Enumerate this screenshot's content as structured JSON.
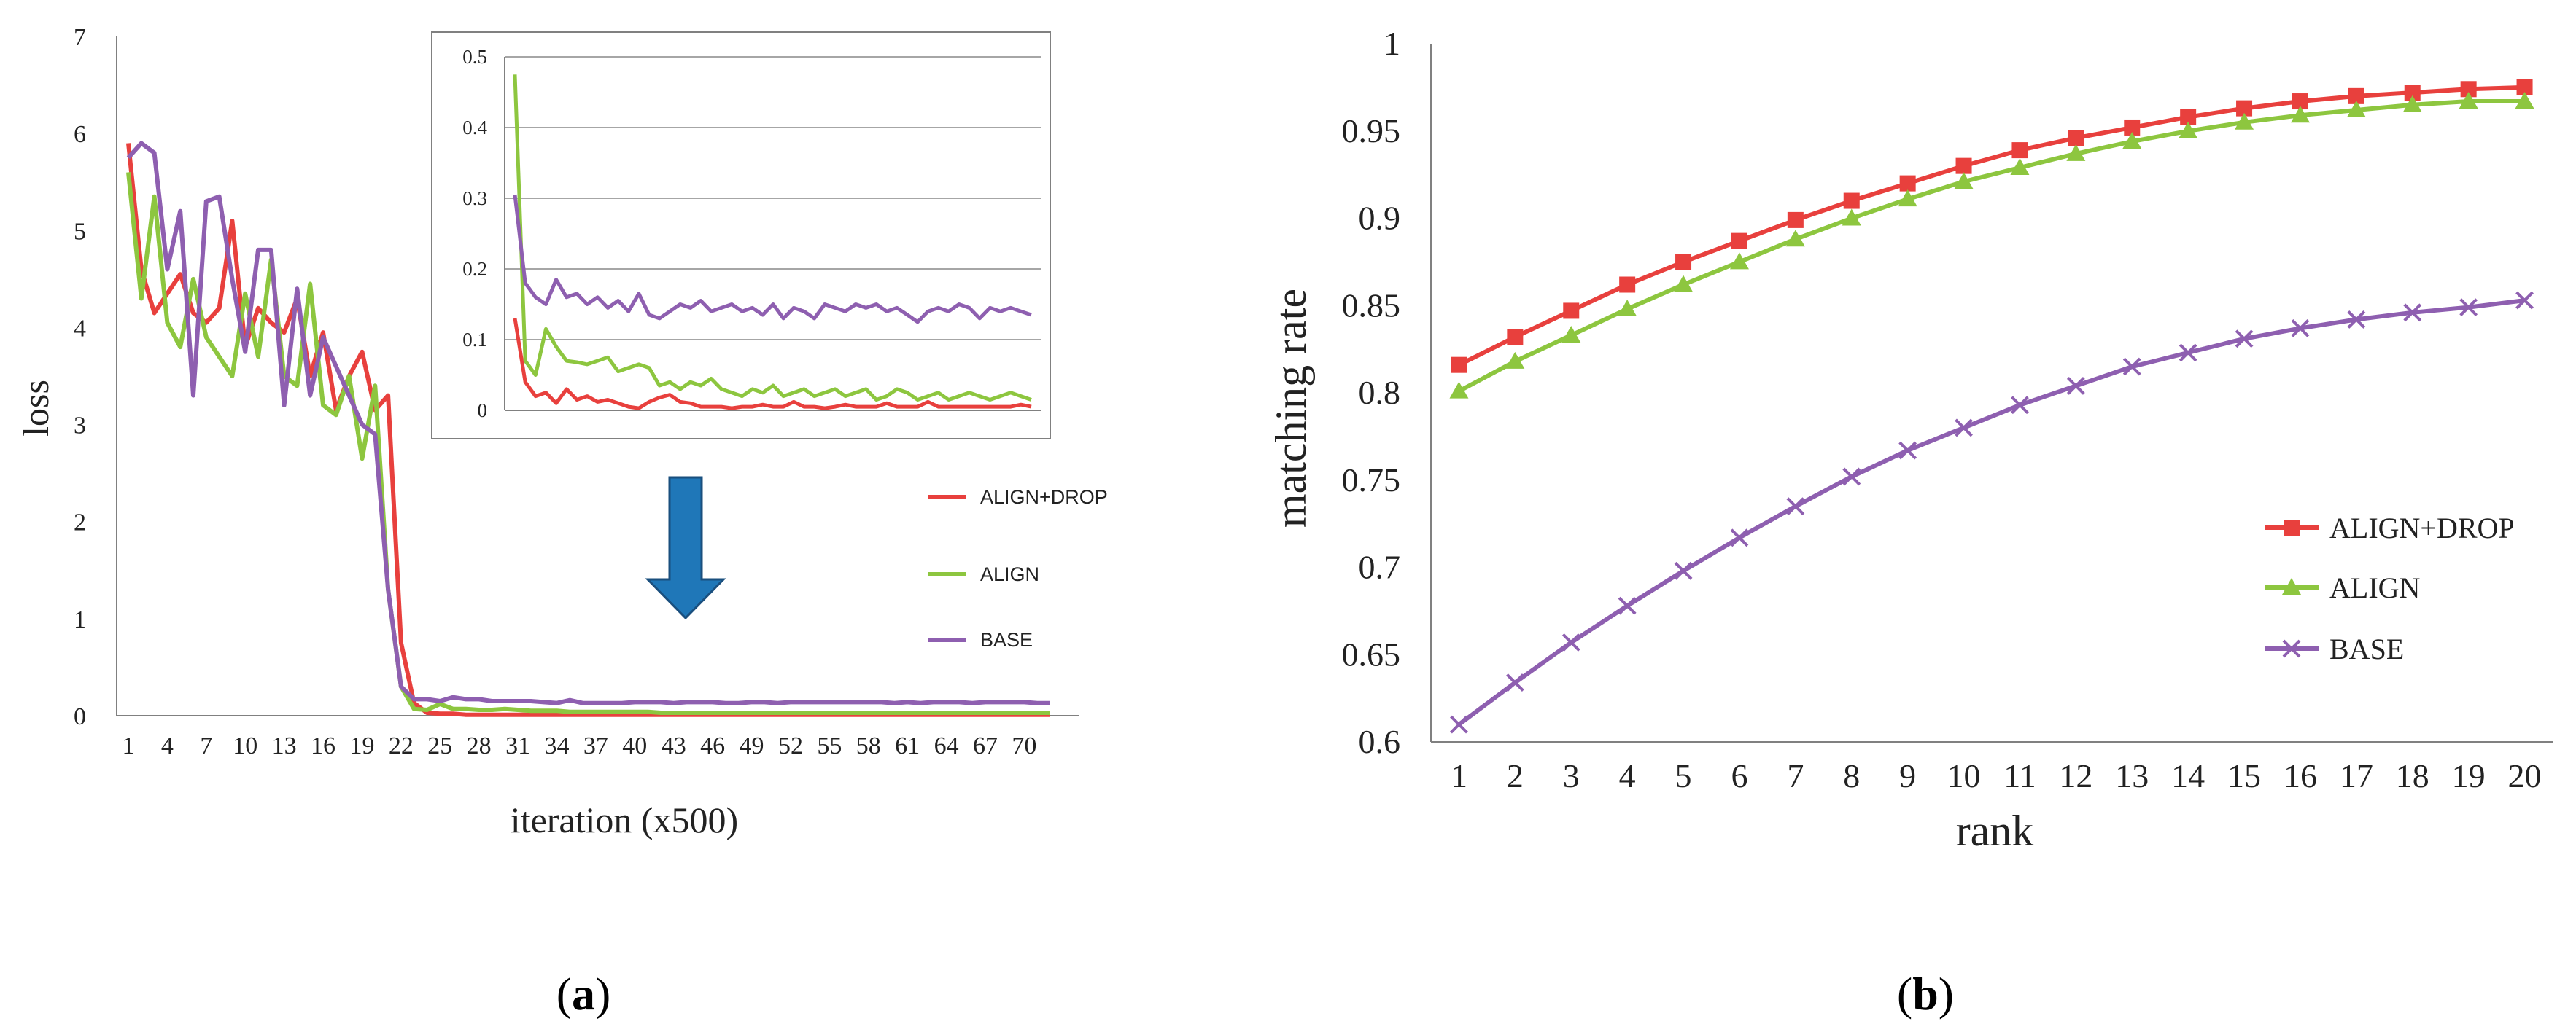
{
  "colors": {
    "align_drop": "#e8403d",
    "align": "#8dc63f",
    "base": "#8e5fb0",
    "arrow_fill": "#1f77b8",
    "arrow_stroke": "#1a4f7e",
    "axis": "#808080",
    "grid": "#a6a6a6"
  },
  "panels": {
    "a_label": "a",
    "b_label": "b"
  },
  "chart_data": [
    {
      "id": "a-main",
      "type": "line",
      "xlabel": "iteration (x500)",
      "ylabel": "loss",
      "ylim": [
        0,
        7
      ],
      "yticks": [
        "0",
        "1",
        "2",
        "3",
        "4",
        "5",
        "6",
        "7"
      ],
      "x_count": 72,
      "xticks": [
        "1",
        "4",
        "7",
        "10",
        "13",
        "16",
        "19",
        "22",
        "25",
        "28",
        "31",
        "34",
        "37",
        "40",
        "43",
        "46",
        "49",
        "52",
        "55",
        "58",
        "61",
        "64",
        "67",
        "70"
      ],
      "grid": false,
      "series": [
        {
          "name": "ALIGN+DROP",
          "color": "#e8403d",
          "values": [
            5.9,
            4.6,
            4.15,
            4.35,
            4.55,
            4.15,
            4.05,
            4.2,
            5.1,
            3.8,
            4.2,
            4.05,
            3.95,
            4.3,
            3.5,
            3.95,
            3.15,
            3.5,
            3.75,
            3.15,
            3.3,
            0.75,
            0.13,
            0.03,
            0.02,
            0.02,
            0.01,
            0.01,
            0.01,
            0.01,
            0.01,
            0.01,
            0.01,
            0.01,
            0.01,
            0.01,
            0.01,
            0.01,
            0.01,
            0.01,
            0.01,
            0.01,
            0.01,
            0.01,
            0.01,
            0.01,
            0.01,
            0.01,
            0.01,
            0.01,
            0.01,
            0.01,
            0.01,
            0.01,
            0.01,
            0.01,
            0.01,
            0.01,
            0.01,
            0.01,
            0.01,
            0.01,
            0.01,
            0.01,
            0.01,
            0.01,
            0.01,
            0.01,
            0.01,
            0.01,
            0.01,
            0.01
          ]
        },
        {
          "name": "ALIGN",
          "color": "#8dc63f",
          "values": [
            5.6,
            4.3,
            5.35,
            4.05,
            3.8,
            4.5,
            3.9,
            3.7,
            3.5,
            4.35,
            3.7,
            4.7,
            3.5,
            3.4,
            4.45,
            3.2,
            3.1,
            3.5,
            2.65,
            3.4,
            1.3,
            0.3,
            0.07,
            0.06,
            0.12,
            0.07,
            0.07,
            0.06,
            0.06,
            0.07,
            0.06,
            0.05,
            0.05,
            0.05,
            0.04,
            0.04,
            0.04,
            0.04,
            0.04,
            0.04,
            0.04,
            0.03,
            0.03,
            0.03,
            0.03,
            0.03,
            0.03,
            0.03,
            0.03,
            0.03,
            0.03,
            0.03,
            0.03,
            0.03,
            0.03,
            0.03,
            0.03,
            0.03,
            0.03,
            0.03,
            0.03,
            0.03,
            0.03,
            0.03,
            0.03,
            0.03,
            0.03,
            0.03,
            0.03,
            0.03,
            0.03,
            0.03
          ]
        },
        {
          "name": "BASE",
          "color": "#8e5fb0",
          "values": [
            5.75,
            5.9,
            5.8,
            4.6,
            5.2,
            3.3,
            5.3,
            5.35,
            4.5,
            3.75,
            4.8,
            4.8,
            3.2,
            4.4,
            3.3,
            3.9,
            3.6,
            3.3,
            3.0,
            2.9,
            1.3,
            0.3,
            0.17,
            0.17,
            0.15,
            0.19,
            0.17,
            0.17,
            0.15,
            0.15,
            0.15,
            0.15,
            0.14,
            0.13,
            0.16,
            0.13,
            0.13,
            0.13,
            0.13,
            0.14,
            0.14,
            0.14,
            0.13,
            0.14,
            0.14,
            0.14,
            0.13,
            0.13,
            0.14,
            0.14,
            0.13,
            0.14,
            0.14,
            0.14,
            0.14,
            0.14,
            0.14,
            0.14,
            0.14,
            0.13,
            0.14,
            0.13,
            0.14,
            0.14,
            0.14,
            0.13,
            0.14,
            0.14,
            0.14,
            0.14,
            0.13,
            0.13
          ]
        }
      ]
    },
    {
      "id": "a-inset",
      "type": "line",
      "ylim": [
        0,
        0.5
      ],
      "yticks": [
        "0",
        "0.1",
        "0.2",
        "0.3",
        "0.4",
        "0.5"
      ],
      "grid": true,
      "series": [
        {
          "name": "ALIGN+DROP",
          "color": "#e8403d",
          "values": [
            0.13,
            0.04,
            0.02,
            0.025,
            0.01,
            0.03,
            0.015,
            0.02,
            0.012,
            0.015,
            0.01,
            0.005,
            0.003,
            0.012,
            0.018,
            0.022,
            0.012,
            0.01,
            0.005,
            0.005,
            0.005,
            0.003,
            0.005,
            0.005,
            0.008,
            0.005,
            0.005,
            0.012,
            0.005,
            0.005,
            0.003,
            0.005,
            0.008,
            0.005,
            0.005,
            0.005,
            0.01,
            0.005,
            0.005,
            0.005,
            0.012,
            0.005,
            0.005,
            0.005,
            0.005,
            0.005,
            0.005,
            0.005,
            0.005,
            0.008,
            0.005
          ]
        },
        {
          "name": "ALIGN",
          "color": "#8dc63f",
          "values": [
            0.475,
            0.07,
            0.05,
            0.115,
            0.09,
            0.07,
            0.068,
            0.065,
            0.07,
            0.075,
            0.055,
            0.06,
            0.065,
            0.06,
            0.035,
            0.04,
            0.03,
            0.04,
            0.035,
            0.045,
            0.03,
            0.025,
            0.02,
            0.03,
            0.025,
            0.035,
            0.02,
            0.025,
            0.03,
            0.02,
            0.025,
            0.03,
            0.02,
            0.025,
            0.03,
            0.015,
            0.02,
            0.03,
            0.025,
            0.015,
            0.02,
            0.025,
            0.015,
            0.02,
            0.025,
            0.02,
            0.015,
            0.02,
            0.025,
            0.02,
            0.015
          ]
        },
        {
          "name": "BASE",
          "color": "#8e5fb0",
          "values": [
            0.305,
            0.18,
            0.16,
            0.15,
            0.185,
            0.16,
            0.165,
            0.15,
            0.16,
            0.145,
            0.155,
            0.14,
            0.165,
            0.135,
            0.13,
            0.14,
            0.15,
            0.145,
            0.155,
            0.14,
            0.145,
            0.15,
            0.14,
            0.145,
            0.135,
            0.15,
            0.13,
            0.145,
            0.14,
            0.13,
            0.15,
            0.145,
            0.14,
            0.15,
            0.145,
            0.15,
            0.14,
            0.145,
            0.135,
            0.125,
            0.14,
            0.145,
            0.14,
            0.15,
            0.145,
            0.13,
            0.145,
            0.14,
            0.145,
            0.14,
            0.135
          ]
        }
      ]
    },
    {
      "id": "b",
      "type": "line",
      "xlabel": "rank",
      "ylabel": "matching rate",
      "ylim": [
        0.6,
        1
      ],
      "yticks": [
        "0.6",
        "0.65",
        "0.7",
        "0.75",
        "0.8",
        "0.85",
        "0.9",
        "0.95",
        "1"
      ],
      "categories": [
        "1",
        "2",
        "3",
        "4",
        "5",
        "6",
        "7",
        "8",
        "9",
        "10",
        "11",
        "12",
        "13",
        "14",
        "15",
        "16",
        "17",
        "18",
        "19",
        "20"
      ],
      "grid": false,
      "legend": "right",
      "series": [
        {
          "name": "ALIGN+DROP",
          "color": "#e8403d",
          "marker": "square",
          "values": [
            0.816,
            0.832,
            0.847,
            0.862,
            0.875,
            0.887,
            0.899,
            0.91,
            0.92,
            0.93,
            0.939,
            0.946,
            0.952,
            0.958,
            0.963,
            0.967,
            0.97,
            0.972,
            0.974,
            0.975
          ]
        },
        {
          "name": "ALIGN",
          "color": "#8dc63f",
          "marker": "triangle",
          "values": [
            0.801,
            0.818,
            0.833,
            0.848,
            0.862,
            0.875,
            0.888,
            0.9,
            0.911,
            0.921,
            0.929,
            0.937,
            0.944,
            0.95,
            0.955,
            0.959,
            0.962,
            0.965,
            0.967,
            0.967
          ]
        },
        {
          "name": "BASE",
          "color": "#8e5fb0",
          "marker": "x",
          "values": [
            0.61,
            0.634,
            0.657,
            0.678,
            0.698,
            0.717,
            0.735,
            0.752,
            0.767,
            0.78,
            0.793,
            0.804,
            0.815,
            0.823,
            0.831,
            0.837,
            0.842,
            0.846,
            0.849,
            0.853
          ]
        }
      ]
    }
  ]
}
